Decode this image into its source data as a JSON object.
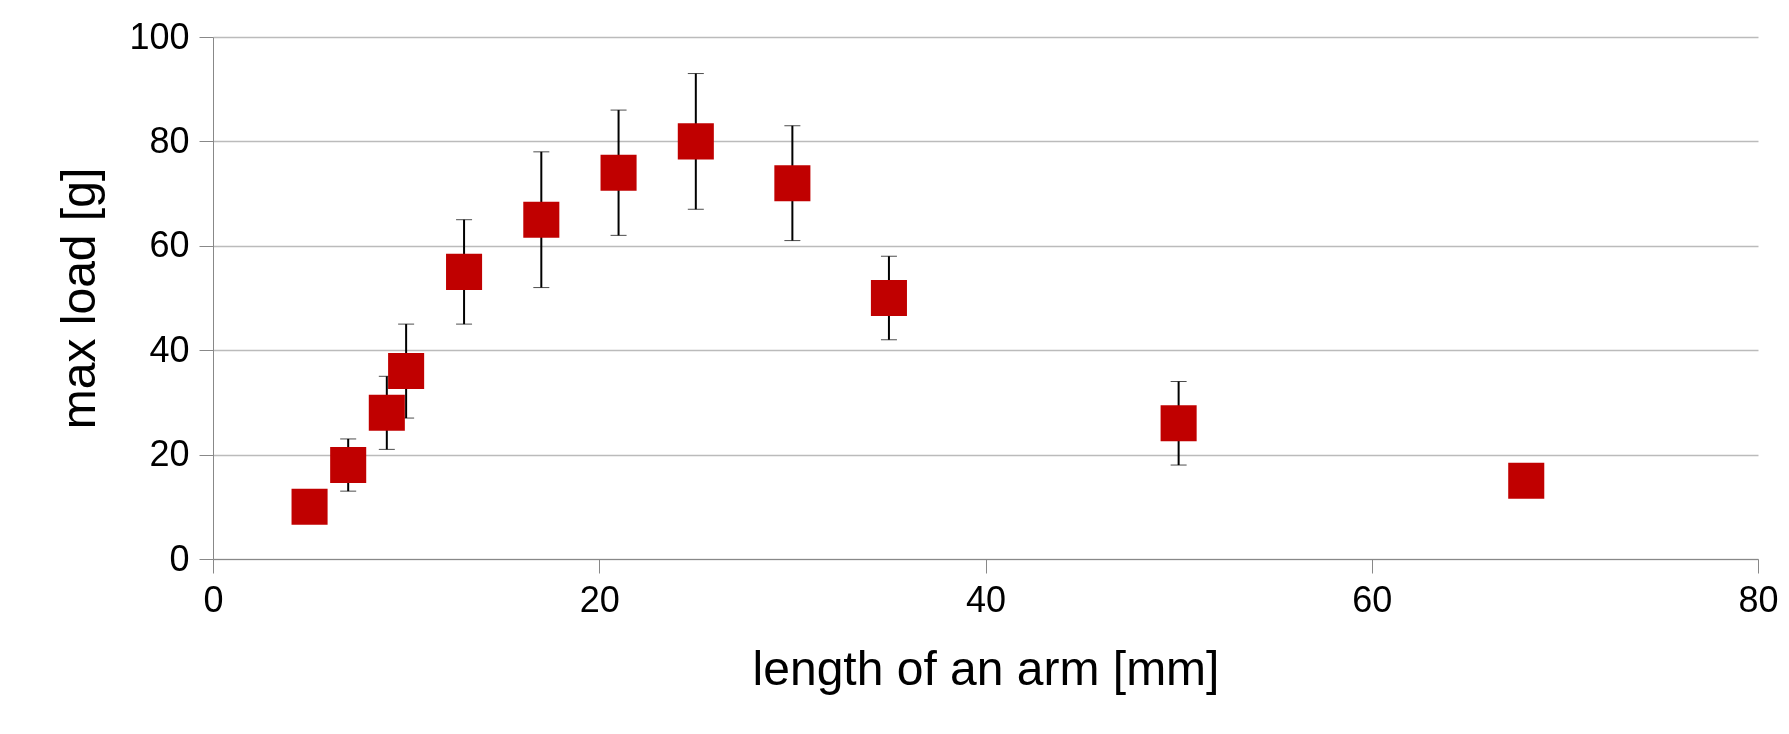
{
  "chart_data": {
    "type": "scatter",
    "xlabel": "length of an arm [mm]",
    "ylabel": "max load [g]",
    "x": [
      5,
      7,
      9,
      10,
      13,
      17,
      21,
      25,
      30,
      35,
      50,
      68
    ],
    "series": [
      {
        "color": "#c00000",
        "values": [
          10,
          18,
          28,
          36,
          55,
          65,
          74,
          80,
          72,
          50,
          26,
          15
        ],
        "errors": [
          null,
          5,
          7,
          9,
          10,
          13,
          12,
          13,
          11,
          8,
          8,
          null
        ]
      }
    ],
    "xlim": [
      0,
      80
    ],
    "xticks": [
      0,
      20,
      40,
      60,
      80
    ],
    "ylim": [
      0,
      100
    ],
    "yticks": [
      0,
      20,
      40,
      60,
      80,
      100
    ],
    "grid": "y",
    "marker": "square"
  }
}
